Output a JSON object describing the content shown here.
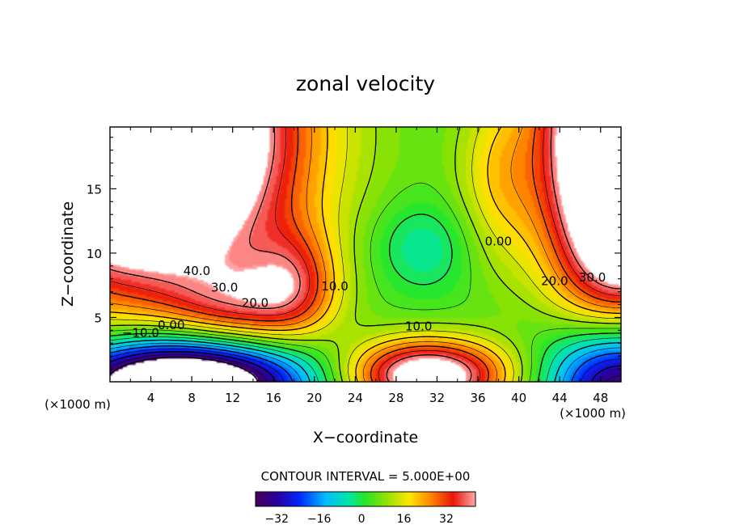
{
  "chart_data": {
    "type": "heatmap",
    "title": "zonal velocity",
    "xlabel": "X−coordinate",
    "ylabel": "Z−coordinate",
    "x_unit_left": "(×1000 m)",
    "x_unit_right": "(×1000 m)",
    "xlim": [
      0,
      50
    ],
    "ylim": [
      0,
      19.8
    ],
    "xticks": [
      4,
      8,
      12,
      16,
      20,
      24,
      28,
      32,
      36,
      40,
      44,
      48
    ],
    "xtick_labels": [
      "4",
      "8",
      "12",
      "16",
      "20",
      "24",
      "28",
      "32",
      "36",
      "40",
      "44",
      "48"
    ],
    "yticks": [
      5,
      10,
      15
    ],
    "ytick_labels": [
      "5",
      "10",
      "15"
    ],
    "contour_interval_text": "CONTOUR INTERVAL = 5.000E+00",
    "contour_interval": 5,
    "colorbar": {
      "range": [
        -40,
        43
      ],
      "ticks": [
        -32,
        -16,
        0,
        16,
        32
      ],
      "tick_labels": [
        "−32",
        "−16",
        "0",
        "16",
        "32"
      ]
    },
    "contour_labels": [
      {
        "text": "40.0",
        "x": 8.5,
        "y": 8.3
      },
      {
        "text": "30.0",
        "x": 11.2,
        "y": 7.0
      },
      {
        "text": "20.0",
        "x": 14.2,
        "y": 5.8
      },
      {
        "text": "10.0",
        "x": 22.0,
        "y": 7.1
      },
      {
        "text": "0.00",
        "x": 6.0,
        "y": 4.1
      },
      {
        "text": "−10.0",
        "x": 3.0,
        "y": 3.5
      },
      {
        "text": "10.0",
        "x": 30.2,
        "y": 4.0
      },
      {
        "text": "0.00",
        "x": 38.0,
        "y": 10.6
      },
      {
        "text": "20.0",
        "x": 43.5,
        "y": 7.5
      },
      {
        "text": "30.0",
        "x": 47.2,
        "y": 7.8
      }
    ],
    "field_features": [
      {
        "kind": "jet_left",
        "peak": 42,
        "location": "x 0-17, z 7-20"
      },
      {
        "kind": "jet_right",
        "peak": 42,
        "location": "x 43-50, z 7-20"
      },
      {
        "kind": "easterly_minimum",
        "peak": -40,
        "location": "x 0-16, z 0-3"
      },
      {
        "kind": "easterly_minimum",
        "peak": -30,
        "location": "x 43-50, z 0-4"
      },
      {
        "kind": "westerly_maximum",
        "peak": 42,
        "location": "x 25-36, z 0-3"
      },
      {
        "kind": "weak_minimum",
        "peak": -3,
        "location": "x 28-33, z 9-12"
      }
    ]
  }
}
